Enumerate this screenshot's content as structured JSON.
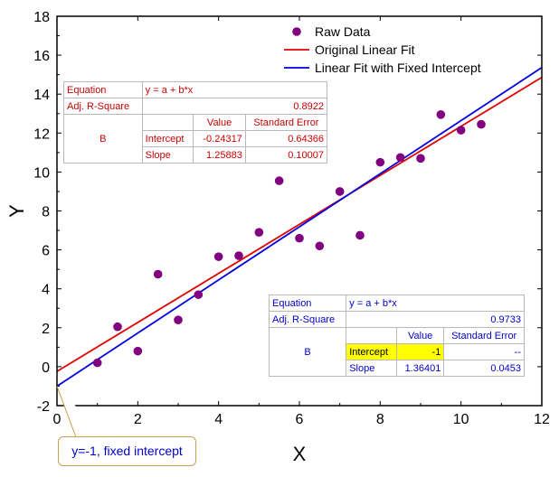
{
  "chart_data": {
    "type": "scatter",
    "xlabel": "X",
    "ylabel": "Y",
    "xlim": [
      0,
      12
    ],
    "ylim": [
      -2,
      18
    ],
    "xticks": [
      0,
      2,
      4,
      6,
      8,
      10,
      12
    ],
    "yticks": [
      -2,
      0,
      2,
      4,
      6,
      8,
      10,
      12,
      14,
      16,
      18
    ],
    "grid": false,
    "series": [
      {
        "name": "Raw Data",
        "kind": "scatter",
        "color": "#800080",
        "x": [
          1,
          1.5,
          2,
          2.5,
          3,
          3.5,
          4,
          4.5,
          5,
          5.5,
          6,
          6.5,
          7,
          7.5,
          8,
          8.5,
          9,
          9.5,
          10,
          10.5
        ],
        "y": [
          0.2,
          2.05,
          0.8,
          4.75,
          2.4,
          3.7,
          5.65,
          5.7,
          6.9,
          9.55,
          6.6,
          6.2,
          9.0,
          6.75,
          10.5,
          10.75,
          10.7,
          12.95,
          12.15,
          12.45
        ]
      },
      {
        "name": "Original Linear Fit",
        "kind": "line",
        "color": "#e00000",
        "intercept": -0.24317,
        "slope": 1.25883,
        "x_range": [
          0,
          12
        ]
      },
      {
        "name": "Linear Fit with Fixed Intercept",
        "kind": "line",
        "color": "#0000e0",
        "intercept": -1,
        "slope": 1.36401,
        "x_range": [
          0,
          12
        ]
      }
    ],
    "legend_position": "top-right",
    "annotations": [
      {
        "text": "y=-1, fixed intercept",
        "x": 0,
        "y": -1
      }
    ]
  },
  "tables": {
    "original": {
      "equation_label": "Equation",
      "equation": "y = a + b*x",
      "adj_r_square_label": "Adj. R-Square",
      "adj_r_square": "0.8922",
      "value_header": "Value",
      "se_header": "Standard Error",
      "group": "B",
      "intercept_label": "Intercept",
      "intercept_value": "-0.24317",
      "intercept_se": "0.64366",
      "slope_label": "Slope",
      "slope_value": "1.25883",
      "slope_se": "0.10007"
    },
    "fixed": {
      "equation_label": "Equation",
      "equation": "y = a + b*x",
      "adj_r_square_label": "Adj. R-Square",
      "adj_r_square": "0.9733",
      "value_header": "Value",
      "se_header": "Standard Error",
      "group": "B",
      "intercept_label": "Intercept",
      "intercept_value": "-1",
      "intercept_se": "--",
      "slope_label": "Slope",
      "slope_value": "1.36401",
      "slope_se": "0.0453"
    }
  },
  "callout": {
    "text": "y=-1, fixed intercept"
  }
}
